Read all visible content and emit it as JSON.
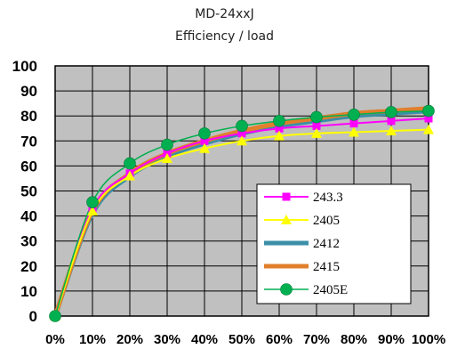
{
  "chart_data": {
    "type": "line",
    "title": "MD-24xxJ",
    "subtitle": "Efficiency / load",
    "xlabel": "",
    "ylabel": "",
    "categories": [
      "0%",
      "10%",
      "20%",
      "30%",
      "40%",
      "50%",
      "60%",
      "70%",
      "80%",
      "90%",
      "100%"
    ],
    "yticks": [
      "0",
      "10",
      "20",
      "30",
      "40",
      "50",
      "60",
      "70",
      "80",
      "90",
      "100"
    ],
    "ylim": [
      0,
      100
    ],
    "grid": true,
    "legend": "lower-right",
    "series": [
      {
        "name": "243.3",
        "color": "#ff00ff",
        "marker": "square",
        "values": [
          0,
          43,
          57,
          65,
          70,
          73,
          75,
          76,
          77,
          78,
          79
        ]
      },
      {
        "name": "2405",
        "color": "#ffff00",
        "marker": "triangle",
        "values": [
          0,
          42,
          56,
          63,
          67,
          70,
          72,
          73,
          73.5,
          74,
          74.5
        ]
      },
      {
        "name": "2412",
        "color": "#3b8fa8",
        "marker": "none",
        "values": [
          0,
          41,
          56,
          64,
          69,
          73,
          76,
          78,
          80,
          81,
          82
        ]
      },
      {
        "name": "2415",
        "color": "#e07f2c",
        "marker": "none",
        "values": [
          0,
          42,
          57,
          65,
          70,
          74,
          77,
          79,
          81,
          82,
          83
        ]
      },
      {
        "name": "2405E",
        "color": "#00b050",
        "marker": "circle",
        "values": [
          0,
          45.5,
          61,
          68.5,
          73,
          76,
          78,
          79.5,
          80.5,
          81.5,
          82
        ]
      }
    ]
  }
}
